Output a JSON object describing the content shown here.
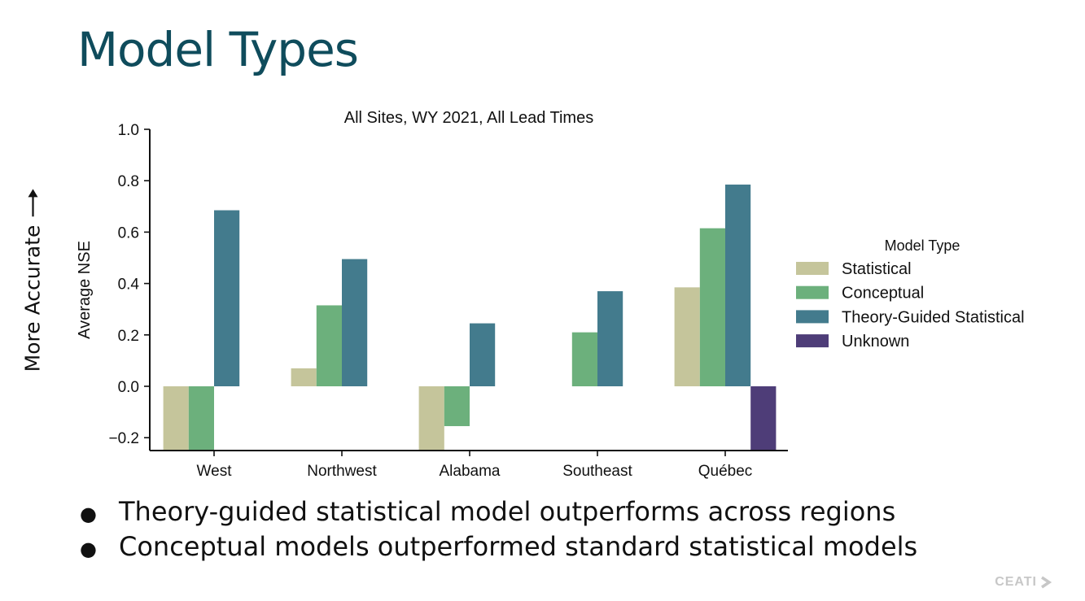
{
  "slide": {
    "title": "Model Types",
    "side_label": "More Accurate",
    "bullets": [
      "Theory-guided statistical model outperforms across regions",
      "Conceptual models outperformed standard statistical models"
    ],
    "logo_text": "CEATI"
  },
  "chart_data": {
    "type": "bar",
    "title": "All Sites, WY 2021, All Lead Times",
    "xlabel": "",
    "ylabel": "Average NSE",
    "ylim": [
      -0.25,
      1.0
    ],
    "yticks": [
      1.0,
      0.8,
      0.6,
      0.4,
      0.2,
      0.0,
      -0.2
    ],
    "ytick_labels": [
      "1.0",
      "0.8",
      "0.6",
      "0.4",
      "0.2",
      "0.0",
      "−0.2"
    ],
    "categories": [
      "West",
      "Northwest",
      "Alabama",
      "Southeast",
      "Québec"
    ],
    "legend_title": "Model Type",
    "legend_position": "right",
    "series": [
      {
        "name": "Statistical",
        "color": "#c5c59b",
        "values": [
          -0.25,
          0.07,
          -0.25,
          null,
          0.385
        ]
      },
      {
        "name": "Conceptual",
        "color": "#6cb07c",
        "values": [
          -0.25,
          0.315,
          -0.155,
          0.21,
          0.615
        ]
      },
      {
        "name": "Theory-Guided Statistical",
        "color": "#437b8d",
        "values": [
          0.685,
          0.495,
          0.245,
          0.37,
          0.785
        ]
      },
      {
        "name": "Unknown",
        "color": "#4e3d78",
        "values": [
          null,
          null,
          null,
          null,
          -0.25
        ]
      }
    ]
  }
}
